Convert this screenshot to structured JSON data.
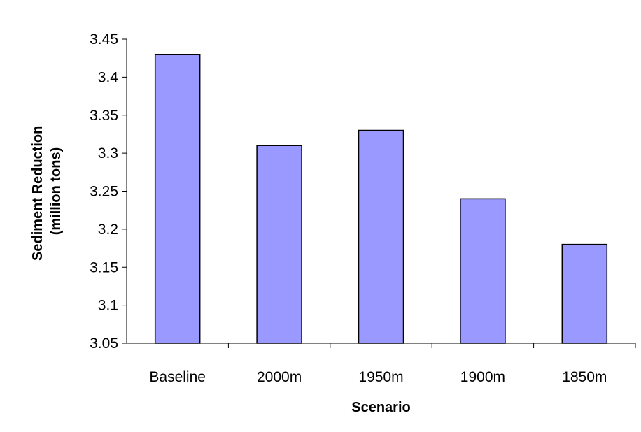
{
  "chart_data": {
    "type": "bar",
    "categories": [
      "Baseline",
      "2000m",
      "1950m",
      "1900m",
      "1850m"
    ],
    "values": [
      3.43,
      3.31,
      3.33,
      3.24,
      3.18
    ],
    "title": "",
    "xlabel": "Scenario",
    "ylabel_lines": [
      "Sediment Reduction",
      "(million tons)"
    ],
    "ylim": [
      3.05,
      3.45
    ],
    "yticks": [
      3.05,
      3.1,
      3.15,
      3.2,
      3.25,
      3.3,
      3.35,
      3.4,
      3.45
    ],
    "ytick_labels": [
      "3.05",
      "3.1",
      "3.15",
      "3.2",
      "3.25",
      "3.3",
      "3.35",
      "3.4",
      "3.45"
    ],
    "grid": false,
    "legend": "none",
    "bar_color": "#9999ff",
    "bar_edge_color": "#000000"
  }
}
